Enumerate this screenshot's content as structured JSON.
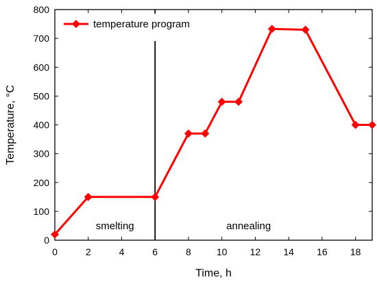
{
  "chart_data": {
    "type": "line",
    "xlabel": "Time, h",
    "ylabel": "Temperature, °C",
    "xlim": [
      0,
      19
    ],
    "ylim": [
      0,
      800
    ],
    "xticks": [
      0,
      2,
      4,
      6,
      8,
      10,
      12,
      14,
      16,
      18
    ],
    "yticks": [
      0,
      100,
      200,
      300,
      400,
      500,
      600,
      700,
      800
    ],
    "grid": false,
    "legend_position": "top-left",
    "series": [
      {
        "name": "temperature program",
        "color": "#ff0000",
        "marker": "diamond",
        "x": [
          0,
          2,
          6,
          8,
          9,
          10,
          11,
          13,
          15,
          18,
          19
        ],
        "y": [
          20,
          150,
          150,
          370,
          370,
          480,
          480,
          733,
          730,
          400,
          400
        ]
      }
    ],
    "divider": {
      "x": 6,
      "color": "#000000"
    },
    "annotations": [
      {
        "text": "smelting",
        "x": 3.6,
        "y": 50
      },
      {
        "text": "annealing",
        "x": 11.6,
        "y": 50
      }
    ]
  }
}
